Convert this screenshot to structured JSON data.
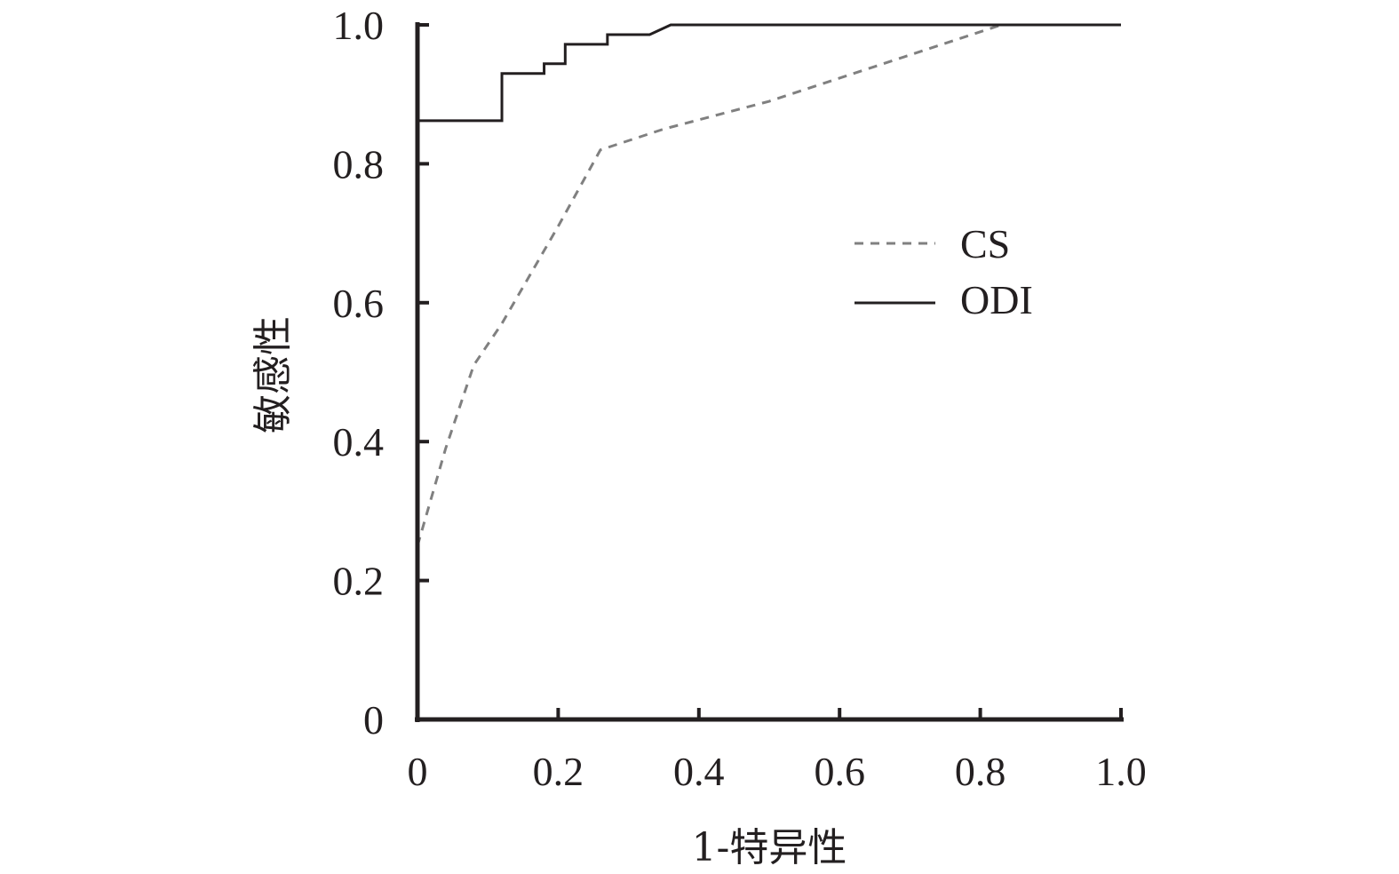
{
  "chart_data": {
    "type": "line",
    "title": "",
    "xlabel": "1-特异性",
    "ylabel": "敏感性",
    "xlim": [
      0,
      1.0
    ],
    "ylim": [
      0,
      1.0
    ],
    "x_ticks": [
      "0",
      "0.2",
      "0.4",
      "0.6",
      "0.8",
      "1.0"
    ],
    "y_ticks": [
      "0",
      "0.2",
      "0.4",
      "0.6",
      "0.8",
      "1.0"
    ],
    "x_tick_values": [
      0,
      0.2,
      0.4,
      0.6,
      0.8,
      1.0
    ],
    "y_tick_values": [
      0,
      0.2,
      0.4,
      0.6,
      0.8,
      1.0
    ],
    "grid": false,
    "legend_position": "center-right",
    "series": [
      {
        "name": "CS",
        "style": "dashed",
        "color": "#808080",
        "points": [
          [
            0,
            0.25
          ],
          [
            0.02,
            0.32
          ],
          [
            0.04,
            0.39
          ],
          [
            0.06,
            0.45
          ],
          [
            0.08,
            0.51
          ],
          [
            0.12,
            0.57
          ],
          [
            0.16,
            0.64
          ],
          [
            0.2,
            0.71
          ],
          [
            0.26,
            0.82
          ],
          [
            0.35,
            0.85
          ],
          [
            0.5,
            0.89
          ],
          [
            0.65,
            0.94
          ],
          [
            0.8,
            0.99
          ],
          [
            0.83,
            1.0
          ],
          [
            1.0,
            1.0
          ]
        ]
      },
      {
        "name": "ODI",
        "style": "solid",
        "color": "#231f20",
        "points": [
          [
            0,
            0.862
          ],
          [
            0.12,
            0.862
          ],
          [
            0.12,
            0.93
          ],
          [
            0.18,
            0.93
          ],
          [
            0.18,
            0.944
          ],
          [
            0.21,
            0.944
          ],
          [
            0.21,
            0.972
          ],
          [
            0.27,
            0.972
          ],
          [
            0.27,
            0.986
          ],
          [
            0.33,
            0.986
          ],
          [
            0.36,
            1.0
          ],
          [
            1.0,
            1.0
          ]
        ]
      }
    ]
  }
}
